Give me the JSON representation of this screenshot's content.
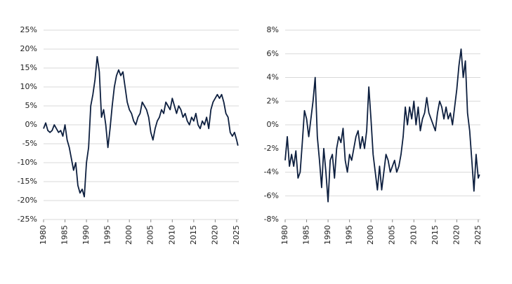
{
  "chart_data": [
    {
      "type": "line",
      "grid": true,
      "xlim": [
        1980,
        2025.5
      ],
      "xticks": [
        1980,
        1985,
        1990,
        1995,
        2000,
        2005,
        2010,
        2015,
        2020,
        2025
      ],
      "ylim": [
        -25,
        25
      ],
      "yticks": [
        {
          "value": 25,
          "label": "25%"
        },
        {
          "value": 20,
          "label": "20%"
        },
        {
          "value": 15,
          "label": "15%"
        },
        {
          "value": 10,
          "label": "10%"
        },
        {
          "value": 5,
          "label": "5%"
        },
        {
          "value": 0,
          "label": "0%"
        },
        {
          "value": -5,
          "label": "-5%"
        },
        {
          "value": -10,
          "label": "-10%"
        },
        {
          "value": -15,
          "label": "-15%"
        },
        {
          "value": -20,
          "label": "-20%"
        },
        {
          "value": -25,
          "label": "-25%"
        }
      ],
      "x": [
        1980,
        1980.5,
        1981,
        1981.5,
        1982,
        1982.5,
        1983,
        1983.5,
        1984,
        1984.5,
        1985,
        1985.5,
        1986,
        1986.5,
        1987,
        1987.5,
        1988,
        1988.5,
        1989,
        1989.5,
        1990,
        1990.5,
        1991,
        1991.5,
        1992,
        1992.5,
        1993,
        1993.5,
        1994,
        1994.5,
        1995,
        1995.5,
        1996,
        1996.5,
        1997,
        1997.5,
        1998,
        1998.5,
        1999,
        1999.5,
        2000,
        2000.5,
        2001,
        2001.5,
        2002,
        2002.5,
        2003,
        2003.5,
        2004,
        2004.5,
        2005,
        2005.5,
        2006,
        2006.5,
        2007,
        2007.5,
        2008,
        2008.5,
        2009,
        2009.5,
        2010,
        2010.5,
        2011,
        2011.5,
        2012,
        2012.5,
        2013,
        2013.5,
        2014,
        2014.5,
        2015,
        2015.5,
        2016,
        2016.5,
        2017,
        2017.5,
        2018,
        2018.5,
        2019,
        2019.5,
        2020,
        2020.5,
        2021,
        2021.5,
        2022,
        2022.5,
        2023,
        2023.5,
        2024,
        2024.5,
        2025,
        2025.3
      ],
      "series": [
        {
          "color": "#0d1f3f",
          "values": [
            -1,
            0.5,
            -1.5,
            -2,
            -1.5,
            0,
            -1,
            -2,
            -1.5,
            -3,
            0,
            -4,
            -6,
            -9,
            -12,
            -10,
            -16,
            -18,
            -17,
            -19,
            -10,
            -6,
            5,
            8,
            12,
            18,
            14,
            2,
            4,
            0,
            -6,
            -1,
            5,
            10,
            13,
            14.5,
            13,
            14,
            10,
            6,
            4,
            3,
            1,
            0,
            2,
            3,
            6,
            5,
            4,
            2,
            -2,
            -4,
            -1,
            1,
            2,
            4,
            3,
            6,
            5,
            4,
            7,
            5,
            3,
            5,
            4,
            2,
            3,
            1,
            0,
            2,
            1,
            3,
            0,
            -1,
            1,
            0,
            2,
            -1,
            4,
            6,
            7,
            8,
            7,
            8,
            6,
            3,
            2,
            -2,
            -3,
            -2,
            -4,
            -5.5
          ]
        }
      ]
    },
    {
      "type": "line",
      "grid": true,
      "xlim": [
        1980,
        2025.5
      ],
      "xticks": [
        1980,
        1985,
        1990,
        1995,
        2000,
        2005,
        2010,
        2015,
        2020,
        2025
      ],
      "ylim": [
        -8,
        8
      ],
      "yticks": [
        {
          "value": 8,
          "label": "8%"
        },
        {
          "value": 6,
          "label": "6%"
        },
        {
          "value": 4,
          "label": "4%"
        },
        {
          "value": 2,
          "label": "2%"
        },
        {
          "value": 0,
          "label": "0%"
        },
        {
          "value": -2,
          "label": "-2%"
        },
        {
          "value": -4,
          "label": "-4%"
        },
        {
          "value": -6,
          "label": "-6%"
        },
        {
          "value": -8,
          "label": "-8%"
        }
      ],
      "x": [
        1980,
        1980.5,
        1981,
        1981.5,
        1982,
        1982.5,
        1983,
        1983.5,
        1984,
        1984.5,
        1985,
        1985.5,
        1986,
        1986.5,
        1987,
        1987.5,
        1988,
        1988.5,
        1989,
        1989.5,
        1990,
        1990.5,
        1991,
        1991.5,
        1992,
        1992.5,
        1993,
        1993.5,
        1994,
        1994.5,
        1995,
        1995.5,
        1996,
        1996.5,
        1997,
        1997.5,
        1998,
        1998.5,
        1999,
        1999.5,
        2000,
        2000.5,
        2001,
        2001.5,
        2002,
        2002.5,
        2003,
        2003.5,
        2004,
        2004.5,
        2005,
        2005.5,
        2006,
        2006.5,
        2007,
        2007.5,
        2008,
        2008.5,
        2009,
        2009.5,
        2010,
        2010.5,
        2011,
        2011.5,
        2012,
        2012.5,
        2013,
        2013.5,
        2014,
        2014.5,
        2015,
        2015.5,
        2016,
        2016.5,
        2017,
        2017.5,
        2018,
        2018.5,
        2019,
        2019.5,
        2020,
        2020.5,
        2021,
        2021.5,
        2022,
        2022.5,
        2023,
        2023.5,
        2024,
        2024.5,
        2025,
        2025.3
      ],
      "series": [
        {
          "color": "#0d1f3f",
          "values": [
            -3,
            -1,
            -3.5,
            -2.5,
            -3.5,
            -2.2,
            -4.5,
            -4,
            -1.5,
            1.2,
            0.5,
            -1,
            0.5,
            2,
            4,
            -1,
            -3,
            -5.3,
            -2,
            -4,
            -6.5,
            -3,
            -2.5,
            -4.5,
            -2,
            -1,
            -1.5,
            -0.3,
            -3,
            -4,
            -2.5,
            -3,
            -2,
            -1,
            -0.5,
            -2,
            -1,
            -2,
            -0.5,
            3.2,
            0.5,
            -2.5,
            -4,
            -5.5,
            -3.5,
            -5.5,
            -4,
            -2.5,
            -3,
            -4,
            -3.5,
            -3,
            -4,
            -3.5,
            -2.5,
            -1,
            1.5,
            0,
            1.5,
            0.5,
            2,
            0,
            1.5,
            -0.5,
            0.5,
            1,
            2.3,
            1,
            0.5,
            0,
            -0.5,
            1,
            2,
            1.5,
            0.5,
            1.5,
            0.5,
            1,
            0,
            1.5,
            3,
            5,
            6.4,
            4,
            5.4,
            1,
            -0.5,
            -3,
            -5.6,
            -2.5,
            -4.5,
            -4.2
          ]
        }
      ]
    }
  ]
}
